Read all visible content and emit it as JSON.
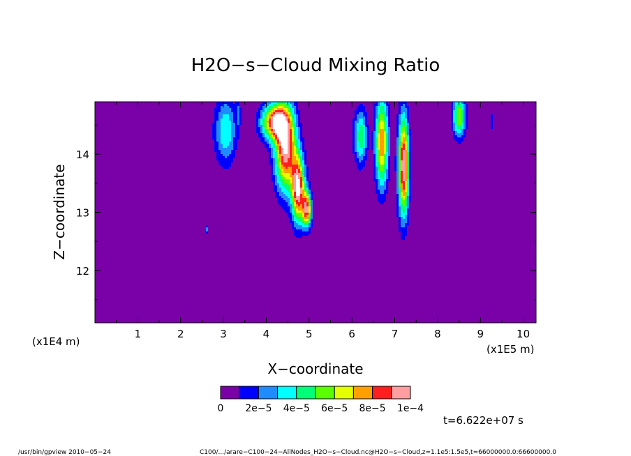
{
  "chart_data": {
    "type": "heatmap",
    "title": "H2O−s−Cloud Mixing Ratio",
    "xlabel": "X−coordinate",
    "ylabel": "Z−coordinate",
    "x_unit_label": "(x1E5 m)",
    "y_unit_label": "(x1E4 m)",
    "xlim": [
      0,
      10.3
    ],
    "ylim": [
      11.1,
      14.9
    ],
    "x_ticks": [
      1,
      2,
      3,
      4,
      5,
      6,
      7,
      8,
      9,
      10
    ],
    "y_ticks": [
      12,
      13,
      14
    ],
    "x_tick_labels": [
      "1",
      "2",
      "3",
      "4",
      "5",
      "6",
      "7",
      "8",
      "9",
      "10"
    ],
    "y_tick_labels": [
      "12",
      "13",
      "14"
    ],
    "background_color": "#7a00a8",
    "colorbar": {
      "levels": [
        0,
        1e-05,
        2e-05,
        3e-05,
        4e-05,
        5e-05,
        6e-05,
        7e-05,
        8e-05,
        9e-05,
        0.0001
      ],
      "labels": [
        "0",
        "2e−5",
        "4e−5",
        "6e−5",
        "8e−5",
        "1e−4"
      ],
      "colors": [
        "#7a00a8",
        "#0000ff",
        "#1e8cff",
        "#00ffff",
        "#00ff78",
        "#5aff00",
        "#e6ff00",
        "#ffa000",
        "#ff1e1e",
        "#ff9ea0"
      ]
    },
    "features": [
      {
        "x": 3.05,
        "z": 14.4,
        "wx": 0.25,
        "wz": 0.55,
        "peak": 4e-05
      },
      {
        "x": 3.35,
        "z": 14.7,
        "wx": 0.05,
        "wz": 0.25,
        "peak": 2e-05
      },
      {
        "x": 4.2,
        "z": 14.55,
        "wx": 0.3,
        "wz": 0.3,
        "peak": 9e-05
      },
      {
        "x": 4.45,
        "z": 14.1,
        "wx": 0.25,
        "wz": 0.7,
        "peak": 0.0001
      },
      {
        "x": 4.75,
        "z": 13.4,
        "wx": 0.15,
        "wz": 0.55,
        "peak": 0.0001
      },
      {
        "x": 4.95,
        "z": 13.05,
        "wx": 0.1,
        "wz": 0.3,
        "peak": 8.5e-05
      },
      {
        "x": 2.6,
        "z": 12.7,
        "wx": 0.03,
        "wz": 0.08,
        "peak": 3e-05
      },
      {
        "x": 6.2,
        "z": 14.3,
        "wx": 0.15,
        "wz": 0.45,
        "peak": 5e-05
      },
      {
        "x": 6.7,
        "z": 14.2,
        "wx": 0.15,
        "wz": 0.75,
        "peak": 8e-05
      },
      {
        "x": 7.2,
        "z": 13.8,
        "wx": 0.12,
        "wz": 0.85,
        "peak": 0.0001
      },
      {
        "x": 8.5,
        "z": 14.65,
        "wx": 0.15,
        "wz": 0.35,
        "peak": 6e-05
      },
      {
        "x": 9.25,
        "z": 14.55,
        "wx": 0.03,
        "wz": 0.2,
        "peak": 2e-05
      }
    ]
  },
  "time_label": "t=6.622e+07 s",
  "footer_left": "/usr/bin/gpview   2010−05−24",
  "footer_right": "C100/.../arare−C100−24−AllNodes_H2O−s−Cloud.nc@H2O−s−Cloud,z=1.1e5:1.5e5,t=66000000.0:66600000.0"
}
